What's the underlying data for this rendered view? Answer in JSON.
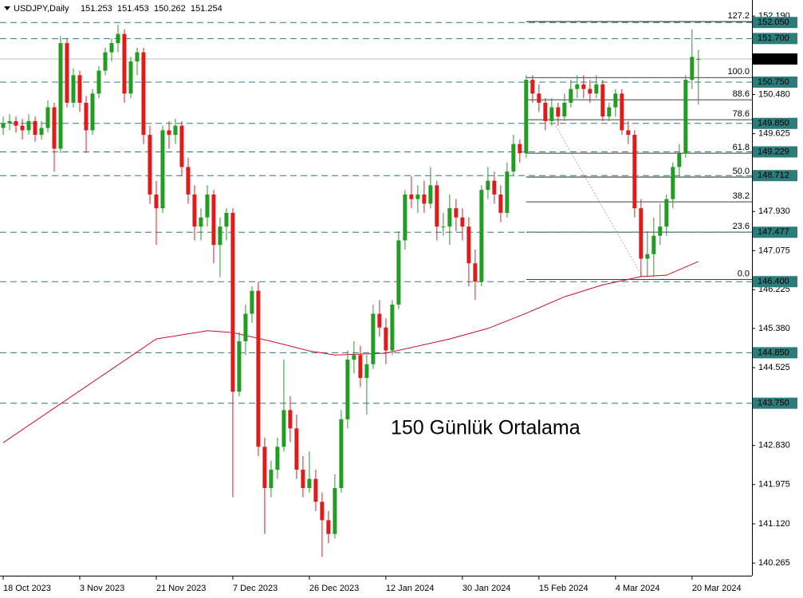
{
  "chart_data": {
    "type": "candlestick",
    "title": "USDJPY,Daily",
    "annotation": "150 Günlük Ortalama",
    "xlim": [
      -0.5,
      117.4
    ],
    "ylim": [
      139.99,
      152.54
    ],
    "xticks": [
      {
        "value": 0,
        "label": "18 Oct 2023"
      },
      {
        "value": 12,
        "label": "3 Nov 2023"
      },
      {
        "value": 24,
        "label": "21 Nov 2023"
      },
      {
        "value": 36,
        "label": "7 Dec 2023"
      },
      {
        "value": 48,
        "label": "26 Dec 2023"
      },
      {
        "value": 60,
        "label": "12 Jan 2024"
      },
      {
        "value": 72,
        "label": "30 Jan 2024"
      },
      {
        "value": 84,
        "label": "15 Feb 2024"
      },
      {
        "value": 96,
        "label": "4 Mar 2024"
      },
      {
        "value": 108,
        "label": "20 Mar 2024"
      }
    ],
    "yticks": [
      {
        "value": 152.19,
        "label": "152.190"
      },
      {
        "value": 150.48,
        "label": "150.480"
      },
      {
        "value": 149.625,
        "label": "149.625"
      },
      {
        "value": 147.93,
        "label": "147.930"
      },
      {
        "value": 147.075,
        "label": "147.075"
      },
      {
        "value": 146.225,
        "label": "146.225"
      },
      {
        "value": 145.38,
        "label": "145.380"
      },
      {
        "value": 144.525,
        "label": "144.525"
      },
      {
        "value": 142.83,
        "label": "142.830"
      },
      {
        "value": 141.975,
        "label": "141.975"
      },
      {
        "value": 141.12,
        "label": "141.120"
      },
      {
        "value": 140.265,
        "label": "140.265"
      }
    ],
    "up_color": "#1f9e1f",
    "down_color": "#e31a1a",
    "ohlc": [
      [
        149.75,
        150.0,
        149.6,
        149.85
      ],
      [
        149.85,
        150.05,
        149.7,
        149.9
      ],
      [
        149.9,
        150.0,
        149.65,
        149.8
      ],
      [
        149.8,
        149.95,
        149.5,
        149.7
      ],
      [
        149.7,
        150.05,
        149.6,
        149.9
      ],
      [
        149.9,
        150.0,
        149.45,
        149.6
      ],
      [
        149.6,
        149.9,
        149.5,
        149.75
      ],
      [
        149.75,
        150.35,
        149.65,
        150.2
      ],
      [
        150.2,
        150.3,
        148.8,
        149.3
      ],
      [
        149.3,
        151.75,
        149.2,
        151.6
      ],
      [
        151.6,
        151.7,
        150.2,
        150.3
      ],
      [
        150.3,
        151.05,
        150.2,
        150.9
      ],
      [
        150.9,
        151.0,
        150.1,
        150.3
      ],
      [
        150.3,
        150.45,
        149.2,
        149.7
      ],
      [
        149.7,
        150.6,
        149.6,
        150.5
      ],
      [
        150.5,
        151.1,
        150.4,
        151.0
      ],
      [
        151.0,
        151.5,
        150.9,
        151.4
      ],
      [
        151.4,
        151.7,
        151.2,
        151.6
      ],
      [
        151.6,
        152.0,
        151.4,
        151.8
      ],
      [
        151.8,
        151.9,
        150.3,
        150.5
      ],
      [
        150.5,
        151.3,
        150.4,
        151.2
      ],
      [
        151.2,
        151.5,
        150.9,
        151.4
      ],
      [
        151.4,
        151.5,
        149.4,
        149.6
      ],
      [
        149.6,
        149.8,
        148.1,
        148.3
      ],
      [
        148.3,
        148.6,
        147.2,
        148.0
      ],
      [
        148.0,
        149.8,
        147.9,
        149.7
      ],
      [
        149.7,
        149.9,
        149.3,
        149.6
      ],
      [
        149.6,
        149.95,
        149.4,
        149.8
      ],
      [
        149.8,
        149.9,
        148.7,
        148.9
      ],
      [
        148.9,
        149.1,
        148.1,
        148.3
      ],
      [
        148.3,
        148.5,
        147.3,
        147.6
      ],
      [
        147.6,
        148.0,
        147.3,
        147.8
      ],
      [
        147.8,
        148.5,
        147.6,
        148.3
      ],
      [
        148.3,
        148.4,
        146.8,
        147.2
      ],
      [
        147.2,
        147.8,
        146.5,
        147.6
      ],
      [
        147.6,
        148.0,
        147.3,
        147.9
      ],
      [
        147.9,
        148.0,
        141.7,
        144.0
      ],
      [
        144.0,
        145.3,
        143.9,
        145.1
      ],
      [
        145.1,
        145.9,
        144.8,
        145.7
      ],
      [
        145.7,
        146.3,
        145.5,
        146.2
      ],
      [
        146.2,
        146.4,
        142.6,
        142.8
      ],
      [
        142.8,
        143.0,
        140.9,
        141.9
      ],
      [
        141.9,
        142.5,
        141.7,
        142.3
      ],
      [
        142.3,
        143.0,
        142.1,
        142.8
      ],
      [
        142.8,
        144.7,
        142.7,
        143.6
      ],
      [
        143.6,
        143.9,
        142.9,
        143.2
      ],
      [
        143.2,
        143.5,
        142.1,
        142.3
      ],
      [
        142.3,
        142.6,
        141.7,
        141.9
      ],
      [
        141.9,
        142.7,
        141.8,
        142.1
      ],
      [
        142.1,
        142.3,
        141.4,
        141.6
      ],
      [
        141.6,
        141.8,
        140.4,
        141.2
      ],
      [
        141.2,
        141.4,
        140.7,
        140.9
      ],
      [
        140.9,
        142.2,
        140.8,
        141.9
      ],
      [
        141.9,
        143.6,
        141.8,
        143.4
      ],
      [
        143.4,
        144.9,
        143.2,
        144.7
      ],
      [
        144.7,
        145.1,
        144.4,
        144.8
      ],
      [
        144.8,
        145.0,
        144.1,
        144.3
      ],
      [
        144.3,
        144.8,
        143.5,
        144.6
      ],
      [
        144.6,
        145.9,
        144.5,
        145.7
      ],
      [
        145.7,
        146.0,
        145.2,
        145.4
      ],
      [
        145.4,
        145.6,
        144.6,
        144.9
      ],
      [
        144.9,
        146.0,
        144.8,
        145.9
      ],
      [
        145.9,
        147.5,
        145.8,
        147.3
      ],
      [
        147.3,
        148.4,
        147.1,
        148.3
      ],
      [
        148.3,
        148.7,
        148.0,
        148.2
      ],
      [
        148.2,
        148.5,
        147.9,
        148.3
      ],
      [
        148.3,
        148.6,
        147.9,
        148.1
      ],
      [
        148.1,
        148.9,
        148.0,
        148.5
      ],
      [
        148.5,
        148.6,
        147.3,
        147.6
      ],
      [
        147.6,
        147.9,
        147.4,
        147.6
      ],
      [
        147.6,
        148.3,
        147.2,
        148.0
      ],
      [
        148.0,
        148.2,
        147.5,
        147.8
      ],
      [
        147.8,
        148.0,
        147.3,
        147.6
      ],
      [
        147.6,
        147.8,
        146.3,
        146.8
      ],
      [
        146.8,
        147.1,
        146.0,
        146.4
      ],
      [
        146.4,
        148.5,
        146.3,
        148.4
      ],
      [
        148.4,
        148.9,
        148.2,
        148.6
      ],
      [
        148.6,
        148.8,
        148.1,
        148.3
      ],
      [
        148.3,
        148.5,
        147.7,
        147.9
      ],
      [
        147.9,
        149.0,
        147.8,
        148.8
      ],
      [
        148.8,
        149.6,
        148.7,
        149.4
      ],
      [
        149.4,
        149.5,
        149.0,
        149.2
      ],
      [
        149.2,
        150.9,
        149.1,
        150.8
      ],
      [
        150.8,
        150.9,
        150.3,
        150.5
      ],
      [
        150.5,
        150.7,
        150.1,
        150.3
      ],
      [
        150.3,
        150.4,
        149.7,
        149.9
      ],
      [
        149.9,
        150.4,
        149.8,
        150.2
      ],
      [
        150.2,
        150.3,
        149.8,
        150.0
      ],
      [
        150.0,
        150.5,
        149.9,
        150.3
      ],
      [
        150.3,
        150.8,
        150.2,
        150.6
      ],
      [
        150.6,
        150.9,
        150.4,
        150.7
      ],
      [
        150.7,
        150.9,
        150.4,
        150.6
      ],
      [
        150.6,
        150.8,
        150.3,
        150.5
      ],
      [
        150.5,
        150.9,
        150.4,
        150.7
      ],
      [
        150.7,
        150.8,
        149.9,
        150.0
      ],
      [
        150.0,
        150.3,
        149.9,
        150.2
      ],
      [
        150.2,
        150.6,
        150.0,
        150.5
      ],
      [
        150.5,
        150.6,
        149.6,
        149.7
      ],
      [
        149.7,
        149.9,
        149.4,
        149.6
      ],
      [
        149.6,
        149.7,
        147.8,
        148.0
      ],
      [
        148.0,
        148.2,
        146.5,
        146.9
      ],
      [
        146.9,
        147.5,
        146.5,
        147.0
      ],
      [
        147.0,
        147.8,
        146.5,
        147.4
      ],
      [
        147.4,
        148.1,
        147.2,
        147.6
      ],
      [
        147.6,
        148.3,
        147.4,
        148.2
      ],
      [
        148.2,
        149.0,
        148.0,
        148.9
      ],
      [
        148.9,
        149.4,
        148.7,
        149.2
      ],
      [
        149.2,
        150.9,
        149.1,
        150.8
      ],
      [
        150.8,
        151.9,
        150.6,
        151.3
      ],
      [
        151.253,
        151.453,
        150.262,
        151.254
      ]
    ],
    "moving_average": {
      "color": "#c8102e",
      "x": [
        0,
        12,
        24,
        32,
        36,
        42,
        48,
        52,
        60,
        70,
        76,
        82,
        88,
        94,
        100,
        104,
        109
      ],
      "values": [
        142.89,
        144.02,
        145.15,
        145.33,
        145.29,
        145.1,
        144.89,
        144.8,
        144.84,
        145.15,
        145.38,
        145.71,
        146.07,
        146.33,
        146.51,
        146.54,
        146.84
      ]
    },
    "levels": [
      {
        "value": 152.05,
        "label": "152.050"
      },
      {
        "value": 151.7,
        "label": "151.700"
      },
      {
        "value": 150.75,
        "label": "150.750"
      },
      {
        "value": 149.85,
        "label": "149.850"
      },
      {
        "value": 149.229,
        "label": "149.229"
      },
      {
        "value": 148.712,
        "label": "148.712"
      },
      {
        "value": 147.477,
        "label": "147.477"
      },
      {
        "value": 146.4,
        "label": "146.400"
      },
      {
        "value": 144.85,
        "label": "144.850"
      },
      {
        "value": 143.75,
        "label": "143.750"
      }
    ],
    "level_color": "#2b7c7a",
    "fibonacci": {
      "start_x": 82,
      "levels": [
        {
          "label": "127.2",
          "price": 152.07
        },
        {
          "label": "100.0",
          "price": 150.85
        },
        {
          "label": "88.6",
          "price": 150.365
        },
        {
          "label": "78.6",
          "price": 149.93
        },
        {
          "label": "61.8",
          "price": 149.2
        },
        {
          "label": "50.0",
          "price": 148.68
        },
        {
          "label": "38.2",
          "price": 148.14
        },
        {
          "label": "23.6",
          "price": 147.48
        },
        {
          "label": "0.0",
          "price": 146.45
        }
      ]
    }
  }
}
